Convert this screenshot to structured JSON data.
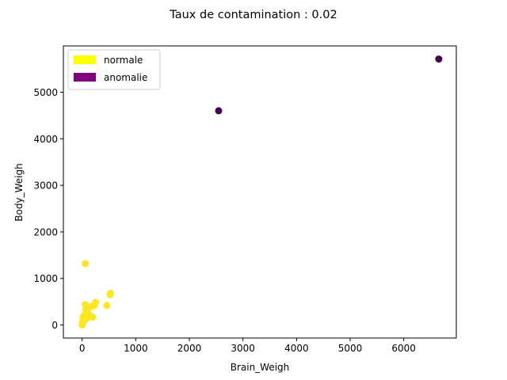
{
  "chart_data": {
    "type": "scatter",
    "title": "Taux de contamination : 0.02",
    "xlabel": "Brain_Weigh",
    "ylabel": "Body_Weigh",
    "xlim": [
      -350,
      6980
    ],
    "ylim": [
      -280,
      5995
    ],
    "xticks": [
      0,
      1000,
      2000,
      3000,
      4000,
      5000,
      6000
    ],
    "yticks": [
      0,
      1000,
      2000,
      3000,
      4000,
      5000
    ],
    "grid": false,
    "legend_position": "top-left",
    "series": [
      {
        "name": "normale",
        "color": "#fde725",
        "legend_color": "#ffff00",
        "points": [
          [
            0,
            0
          ],
          [
            3,
            5
          ],
          [
            10,
            25
          ],
          [
            5,
            60
          ],
          [
            25,
            80
          ],
          [
            40,
            110
          ],
          [
            15,
            160
          ],
          [
            60,
            130
          ],
          [
            80,
            175
          ],
          [
            110,
            160
          ],
          [
            30,
            200
          ],
          [
            90,
            260
          ],
          [
            120,
            240
          ],
          [
            170,
            180
          ],
          [
            200,
            170
          ],
          [
            70,
            330
          ],
          [
            100,
            340
          ],
          [
            60,
            440
          ],
          [
            180,
            400
          ],
          [
            230,
            420
          ],
          [
            250,
            490
          ],
          [
            460,
            420
          ],
          [
            520,
            650
          ],
          [
            530,
            680
          ],
          [
            60,
            1320
          ]
        ]
      },
      {
        "name": "anomalie",
        "color": "#440154",
        "legend_color": "#800080",
        "points": [
          [
            2547,
            4603
          ],
          [
            6654,
            5712
          ]
        ]
      }
    ]
  }
}
